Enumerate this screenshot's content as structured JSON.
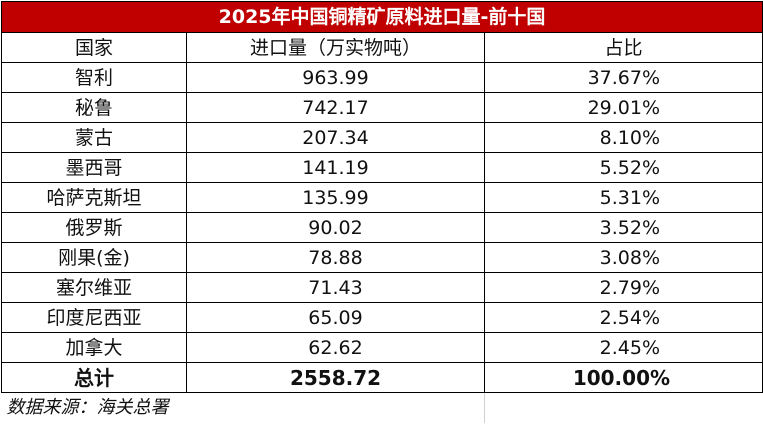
{
  "title": "2025年中国铜精矿原料进口量-前十国",
  "header": {
    "country": "国家",
    "quantity": "进口量（万实物吨）",
    "share": "占比"
  },
  "rows": [
    {
      "country": "智利",
      "quantity": "963.99",
      "share": "37.67%"
    },
    {
      "country": "秘鲁",
      "quantity": "742.17",
      "share": "29.01%"
    },
    {
      "country": "蒙古",
      "quantity": "207.34",
      "share": "8.10%"
    },
    {
      "country": "墨西哥",
      "quantity": "141.19",
      "share": "5.52%"
    },
    {
      "country": "哈萨克斯坦",
      "quantity": "135.99",
      "share": "5.31%"
    },
    {
      "country": "俄罗斯",
      "quantity": "90.02",
      "share": "3.52%"
    },
    {
      "country": "刚果(金)",
      "quantity": "78.88",
      "share": "3.08%"
    },
    {
      "country": "塞尔维亚",
      "quantity": "71.43",
      "share": "2.79%"
    },
    {
      "country": "印度尼西亚",
      "quantity": "65.09",
      "share": "2.54%"
    },
    {
      "country": "加拿大",
      "quantity": "62.62",
      "share": "2.45%"
    }
  ],
  "total": {
    "label": "总计",
    "quantity": "2558.72",
    "share": "100.00%"
  },
  "source": "数据来源：海关总署",
  "colors": {
    "title_bg": "#c00000",
    "title_text": "#ffffff"
  }
}
